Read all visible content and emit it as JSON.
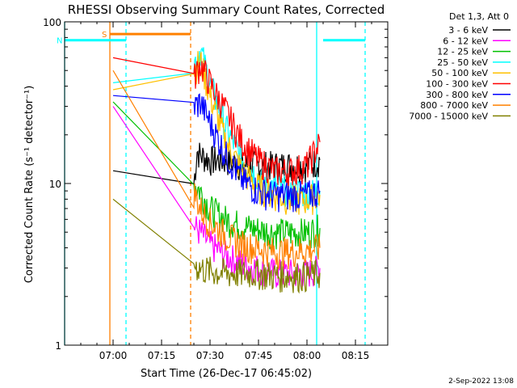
{
  "chart_data": {
    "type": "line",
    "title": "RHESSI Observing Summary Count Rates, Corrected",
    "xlabel": "Start Time (26-Dec-17 06:45:02)",
    "ylabel": "Corrected Count Rate (s⁻¹ detector⁻¹)",
    "yscale": "log",
    "ylim": [
      1,
      100
    ],
    "xlim": [
      "06:45",
      "08:25"
    ],
    "x_ticks": [
      "07:00",
      "07:15",
      "07:30",
      "07:45",
      "08:00",
      "08:15"
    ],
    "y_ticks": [
      "1",
      "10",
      "100"
    ],
    "legend_title": "Det 1,3, Att 0",
    "legend_position": "right",
    "footer_date": "2-Sep-2022 13:08",
    "markers": [
      {
        "label": "S",
        "color": "#ff8000",
        "start": "06:59",
        "end": "07:24",
        "y": 84
      },
      {
        "label": "N",
        "color": "#00ffff",
        "start": "06:45",
        "end": "07:04",
        "y": 77
      },
      {
        "label": "",
        "color": "#00ffff",
        "start": "08:05",
        "end": "08:18",
        "y": 77
      }
    ],
    "vlines": [
      {
        "t": "06:59",
        "color": "#ff8000",
        "style": "solid"
      },
      {
        "t": "07:24",
        "color": "#ff8000",
        "style": "dashed"
      },
      {
        "t": "07:04",
        "color": "#00ffff",
        "style": "dashed"
      },
      {
        "t": "08:03",
        "color": "#00ffff",
        "style": "solid"
      },
      {
        "t": "08:18",
        "color": "#00ffff",
        "style": "dashed"
      },
      {
        "t": "06:45",
        "color": "#00ffff",
        "style": "solid"
      }
    ],
    "series": [
      {
        "name": "3 - 6 keV",
        "color": "#000000",
        "x": [
          "07:00",
          "07:25",
          "07:26",
          "07:27",
          "07:30",
          "07:35",
          "07:40",
          "07:45",
          "07:50",
          "07:55",
          "08:00",
          "08:04"
        ],
        "values": [
          12,
          10,
          16,
          15,
          14,
          14,
          13,
          13,
          13,
          13,
          13,
          14
        ]
      },
      {
        "name": "6 - 12 keV",
        "color": "#ff00ff",
        "x": [
          "07:00",
          "07:25",
          "07:27",
          "07:30",
          "07:35",
          "07:40",
          "07:45",
          "07:50",
          "07:55",
          "08:00",
          "08:04"
        ],
        "values": [
          30,
          5.5,
          5.0,
          4.2,
          3.6,
          3.2,
          3.0,
          2.8,
          2.8,
          2.8,
          3.0
        ]
      },
      {
        "name": "12 - 25 keV",
        "color": "#00c000",
        "x": [
          "07:00",
          "07:25",
          "07:27",
          "07:30",
          "07:35",
          "07:40",
          "07:45",
          "07:50",
          "07:55",
          "08:00",
          "08:04"
        ],
        "values": [
          32,
          10,
          9.0,
          7.0,
          6.0,
          5.5,
          5.2,
          5.0,
          5.0,
          5.0,
          5.3
        ]
      },
      {
        "name": "25 - 50 keV",
        "color": "#00ffff",
        "x": [
          "07:00",
          "07:25",
          "07:27",
          "07:30",
          "07:35",
          "07:40",
          "07:45",
          "07:50",
          "07:55",
          "08:00",
          "08:04"
        ],
        "values": [
          42,
          55,
          68,
          42,
          22,
          14,
          11,
          9.5,
          9.0,
          8.8,
          9.0
        ]
      },
      {
        "name": "50 - 100 keV",
        "color": "#ffc000",
        "x": [
          "07:00",
          "07:25",
          "07:27",
          "07:30",
          "07:35",
          "07:40",
          "07:45",
          "07:50",
          "07:55",
          "08:00",
          "08:04"
        ],
        "values": [
          38,
          50,
          58,
          35,
          18,
          12,
          9.5,
          8.5,
          8.0,
          8.0,
          8.5
        ]
      },
      {
        "name": "100 - 300 keV",
        "color": "#ff0000",
        "x": [
          "07:00",
          "07:25",
          "07:27",
          "07:30",
          "07:35",
          "07:40",
          "07:45",
          "07:50",
          "07:55",
          "08:00",
          "08:04"
        ],
        "values": [
          60,
          45,
          55,
          42,
          28,
          18,
          14,
          12,
          12,
          13,
          18
        ]
      },
      {
        "name": "300 - 800 keV",
        "color": "#0000ff",
        "x": [
          "07:00",
          "07:25",
          "07:27",
          "07:30",
          "07:35",
          "07:40",
          "07:45",
          "07:50",
          "07:55",
          "08:00",
          "08:04"
        ],
        "values": [
          35,
          30,
          32,
          24,
          15,
          10.5,
          9.0,
          8.5,
          8.5,
          8.5,
          9.0
        ]
      },
      {
        "name": "800 - 7000 keV",
        "color": "#ff8000",
        "x": [
          "07:00",
          "07:25",
          "07:27",
          "07:30",
          "07:35",
          "07:40",
          "07:45",
          "07:50",
          "07:55",
          "08:00",
          "08:04"
        ],
        "values": [
          50,
          9.0,
          7.0,
          5.8,
          4.8,
          4.2,
          4.0,
          3.8,
          3.8,
          3.9,
          4.0
        ]
      },
      {
        "name": "7000 - 15000 keV",
        "color": "#808000",
        "x": [
          "07:00",
          "07:25",
          "07:27",
          "07:30",
          "07:35",
          "07:40",
          "07:45",
          "07:50",
          "07:55",
          "08:00",
          "08:04"
        ],
        "values": [
          8,
          3.2,
          3.0,
          2.9,
          2.8,
          2.8,
          2.8,
          2.7,
          2.7,
          2.7,
          2.8
        ]
      }
    ]
  }
}
